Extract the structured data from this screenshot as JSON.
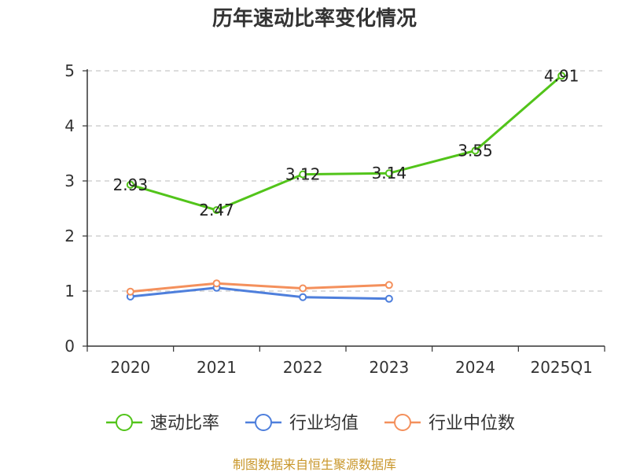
{
  "chart_data": {
    "type": "line",
    "title": "历年速动比率变化情况",
    "categories": [
      "2020",
      "2021",
      "2022",
      "2023",
      "2024",
      "2025Q1"
    ],
    "ylim": [
      0,
      5
    ],
    "yticks": [
      "0",
      "1",
      "2",
      "3",
      "4",
      "5"
    ],
    "grid": true,
    "legend_position": "bottom",
    "series": [
      {
        "name": "速动比率",
        "color": "#52c41a",
        "values": [
          2.93,
          2.47,
          3.12,
          3.14,
          3.55,
          4.91
        ],
        "show_labels": true
      },
      {
        "name": "行业均值",
        "color": "#4e7fdc",
        "values": [
          0.9,
          1.06,
          0.89,
          0.86,
          null,
          null
        ],
        "show_labels": false
      },
      {
        "name": "行业中位数",
        "color": "#f4905c",
        "values": [
          0.99,
          1.14,
          1.05,
          1.11,
          null,
          null
        ],
        "show_labels": false
      }
    ],
    "source": "制图数据来自恒生聚源数据库"
  }
}
